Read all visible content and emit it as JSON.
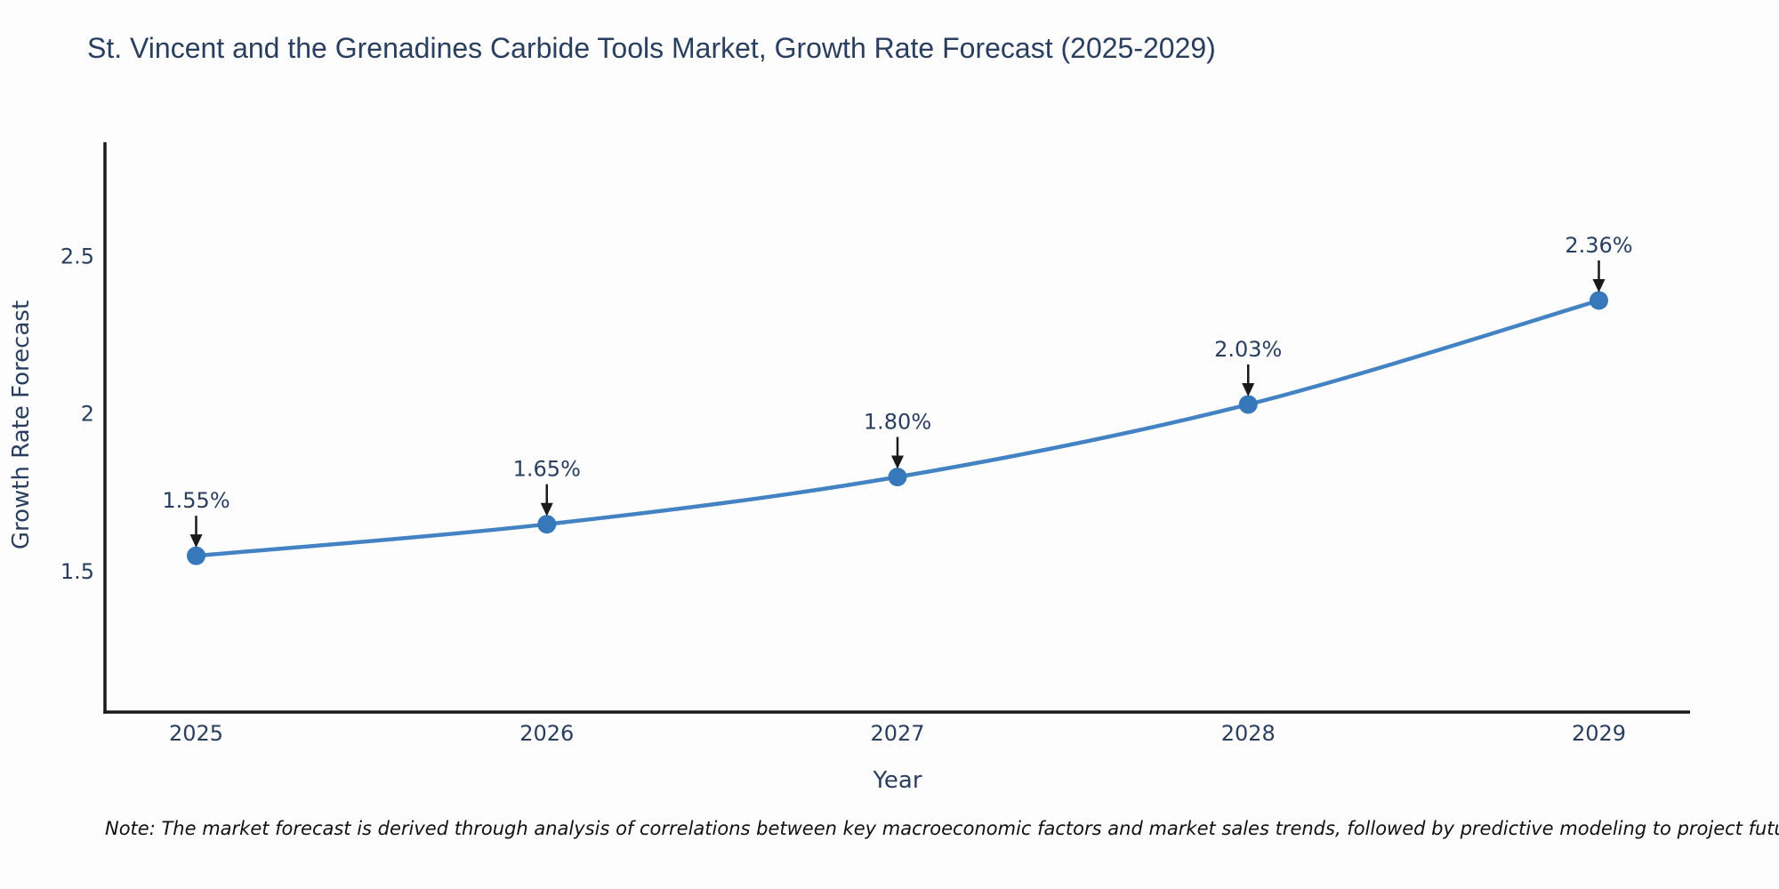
{
  "title": "St. Vincent and the Grenadines Carbide Tools Market, Growth Rate Forecast (2025-2029)",
  "note": "Note: The market forecast is derived through analysis of correlations between key macroeconomic factors and market sales trends, followed by predictive modeling to project future sales",
  "chart_data": {
    "type": "line",
    "title": "St. Vincent and the Grenadines Carbide Tools Market, Growth Rate Forecast (2025-2029)",
    "x": [
      2025,
      2026,
      2027,
      2028,
      2029
    ],
    "values": [
      1.55,
      1.65,
      1.8,
      2.03,
      2.36
    ],
    "point_labels": [
      "1.55%",
      "1.65%",
      "1.80%",
      "2.03%",
      "2.36%"
    ],
    "xlabel": "Year",
    "ylabel": "Growth Rate Forecast",
    "xticks": [
      "2025",
      "2026",
      "2027",
      "2028",
      "2029"
    ],
    "yticks": [
      "1.5",
      "2",
      "2.5"
    ],
    "ytick_values": [
      1.5,
      2,
      2.5
    ],
    "xlim": [
      2024.74,
      2029.26
    ],
    "ylim": [
      1.054,
      2.862
    ],
    "grid": false,
    "legend": false,
    "line_shape": "spline",
    "colors": {
      "line": "#4383c4",
      "marker": "#3778ba",
      "axis": "#1a1a1a",
      "text": "#2a3f5f",
      "annotation_arrow": "#1a1a1a",
      "background": "#fdfdfd"
    }
  }
}
